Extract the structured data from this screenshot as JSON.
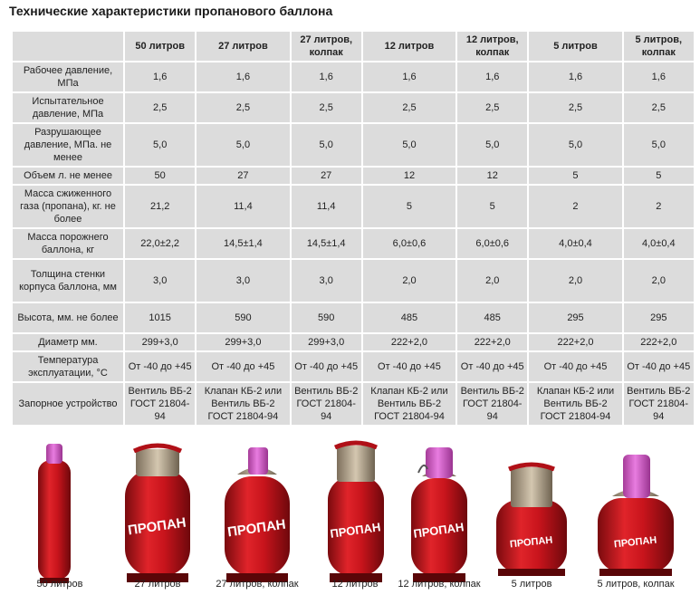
{
  "title": "Технические характеристики пропанового баллона",
  "columns": [
    "50 литров",
    "27 литров",
    "27 литров, колпак",
    "12 литров",
    "12 литров, колпак",
    "5 литров",
    "5 литров, колпак"
  ],
  "rows": [
    {
      "label": "Рабочее давление, МПа",
      "values": [
        "1,6",
        "1,6",
        "1,6",
        "1,6",
        "1,6",
        "1,6",
        "1,6"
      ]
    },
    {
      "label": "Испытательное давление, МПа",
      "values": [
        "2,5",
        "2,5",
        "2,5",
        "2,5",
        "2,5",
        "2,5",
        "2,5"
      ]
    },
    {
      "label": "Разрушающее давление, МПа. не менее",
      "values": [
        "5,0",
        "5,0",
        "5,0",
        "5,0",
        "5,0",
        "5,0",
        "5,0"
      ]
    },
    {
      "label": "Объем л. не менее",
      "values": [
        "50",
        "27",
        "27",
        "12",
        "12",
        "5",
        "5"
      ]
    },
    {
      "label": "Масса сжиженного газа (пропана), кг. не более",
      "values": [
        "21,2",
        "11,4",
        "11,4",
        "5",
        "5",
        "2",
        "2"
      ]
    },
    {
      "label": "Масса порожнего баллона, кг",
      "values": [
        "22,0±2,2",
        "14,5±1,4",
        "14,5±1,4",
        "6,0±0,6",
        "6,0±0,6",
        "4,0±0,4",
        "4,0±0,4"
      ]
    },
    {
      "label": "Толщина стенки корпуса баллона, мм",
      "values": [
        "3,0",
        "3,0",
        "3,0",
        "2,0",
        "2,0",
        "2,0",
        "2,0"
      ]
    },
    {
      "label": "Высота, мм. не более",
      "values": [
        "1015",
        "590",
        "590",
        "485",
        "485",
        "295",
        "295"
      ]
    },
    {
      "label": "Диаметр мм.",
      "values": [
        "299+3,0",
        "299+3,0",
        "299+3,0",
        "222+2,0",
        "222+2,0",
        "222+2,0",
        "222+2,0"
      ]
    },
    {
      "label": "Температура эксплуатации, °С",
      "values": [
        "От -40 до +45",
        "От -40 до +45",
        "От -40 до +45",
        "От -40 до +45",
        "От -40 до +45",
        "От -40 до +45",
        "От -40 до +45"
      ]
    },
    {
      "label": "Запорное устройство",
      "values": [
        "Вентиль ВБ-2 ГОСТ 21804-94",
        "Клапан КБ-2 или Вентиль ВБ-2 ГОСТ 21804-94",
        "Вентиль ВБ-2 ГОСТ 21804-94",
        "Клапан КБ-2 или Вентиль ВБ-2 ГОСТ 21804-94",
        "Вентиль ВБ-2 ГОСТ 21804-94",
        "Клапан КБ-2 или Вентиль ВБ-2 ГОСТ 21804-94",
        "Вентиль ВБ-2 ГОСТ 21804-94"
      ]
    }
  ],
  "cylinders": [
    {
      "caption": "50 литров",
      "brand": ""
    },
    {
      "caption": "27 литров",
      "brand": "ПРОПАН"
    },
    {
      "caption": "27 литров, колпак",
      "brand": "ПРОПАН"
    },
    {
      "caption": "12 литров",
      "brand": "ПРОПАН"
    },
    {
      "caption": "12 литров, колпак",
      "brand": "ПРОПАН"
    },
    {
      "caption": "5 литров",
      "brand": "ПРОПАН"
    },
    {
      "caption": "5 литров, колпак",
      "brand": "ПРОПАН"
    }
  ],
  "colors": {
    "cylinder_red": "#c8141c",
    "cap_pink": "#d65ec8",
    "collar_gray": "#b8a890",
    "cell_bg": "#dcdcdc"
  }
}
